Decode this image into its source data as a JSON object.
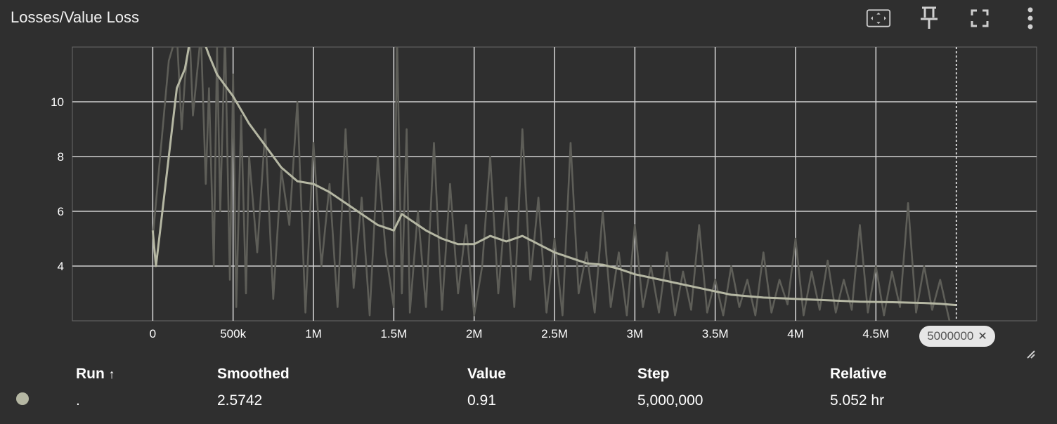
{
  "header": {
    "title": "Losses/Value Loss",
    "icons": [
      "fit-domain-icon",
      "pin-icon",
      "fullscreen-icon",
      "more-vert-icon"
    ]
  },
  "colors": {
    "background": "#2f2f2f",
    "grid": "#cfcfcf",
    "raw_line": "#5e5e58",
    "smoothed_line": "#b5b7a3",
    "tick_text": "#ffffff"
  },
  "chart_data": {
    "type": "line",
    "xlim": [
      -500000,
      5500000
    ],
    "ylim": [
      2,
      12
    ],
    "x_ticks": [
      0,
      500000,
      1000000,
      1500000,
      2000000,
      2500000,
      3000000,
      3500000,
      4000000,
      4500000
    ],
    "x_tick_labels": [
      "0",
      "500k",
      "1M",
      "1.5M",
      "2M",
      "2.5M",
      "3M",
      "3.5M",
      "4M",
      "4.5M"
    ],
    "y_ticks": [
      4,
      6,
      8,
      10
    ],
    "y_tick_labels": [
      "4",
      "6",
      "8",
      "10"
    ],
    "grid": true,
    "hover_step": 5000000,
    "hover_step_label": "5000000",
    "series": [
      {
        "role": "smoothed",
        "x": [
          0,
          20000,
          50000,
          100000,
          150000,
          200000,
          250000,
          300000,
          350000,
          400000,
          450000,
          500000,
          600000,
          700000,
          800000,
          900000,
          1000000,
          1100000,
          1200000,
          1300000,
          1400000,
          1500000,
          1550000,
          1600000,
          1700000,
          1800000,
          1900000,
          2000000,
          2100000,
          2200000,
          2300000,
          2400000,
          2500000,
          2600000,
          2700000,
          2800000,
          2900000,
          3000000,
          3200000,
          3400000,
          3600000,
          3800000,
          4000000,
          4200000,
          4400000,
          4600000,
          4800000,
          4900000,
          5000000
        ],
        "y": [
          5.3,
          4.0,
          5.5,
          8.0,
          10.5,
          11.2,
          12.8,
          12.5,
          11.7,
          11.0,
          10.6,
          10.2,
          9.2,
          8.4,
          7.6,
          7.1,
          7.0,
          6.7,
          6.3,
          5.9,
          5.5,
          5.3,
          5.9,
          5.7,
          5.3,
          5.0,
          4.8,
          4.8,
          5.1,
          4.9,
          5.1,
          4.8,
          4.5,
          4.3,
          4.1,
          4.05,
          3.9,
          3.7,
          3.45,
          3.2,
          2.95,
          2.85,
          2.8,
          2.75,
          2.7,
          2.68,
          2.65,
          2.62,
          2.5742
        ]
      },
      {
        "role": "raw",
        "x": [
          0,
          100000,
          150000,
          180000,
          200000,
          230000,
          250000,
          300000,
          330000,
          350000,
          380000,
          400000,
          420000,
          450000,
          480000,
          500000,
          520000,
          550000,
          580000,
          600000,
          650000,
          700000,
          750000,
          800000,
          850000,
          900000,
          950000,
          1000000,
          1050000,
          1100000,
          1150000,
          1200000,
          1250000,
          1300000,
          1350000,
          1400000,
          1450000,
          1500000,
          1520000,
          1550000,
          1580000,
          1600000,
          1650000,
          1700000,
          1750000,
          1800000,
          1850000,
          1900000,
          1950000,
          2000000,
          2050000,
          2100000,
          2150000,
          2200000,
          2250000,
          2300000,
          2350000,
          2400000,
          2450000,
          2500000,
          2550000,
          2600000,
          2650000,
          2700000,
          2750000,
          2800000,
          2850000,
          2900000,
          2950000,
          3000000,
          3050000,
          3100000,
          3150000,
          3200000,
          3250000,
          3300000,
          3350000,
          3400000,
          3450000,
          3500000,
          3550000,
          3600000,
          3650000,
          3700000,
          3750000,
          3800000,
          3850000,
          3900000,
          3950000,
          4000000,
          4050000,
          4100000,
          4150000,
          4200000,
          4250000,
          4300000,
          4350000,
          4400000,
          4450000,
          4500000,
          4550000,
          4600000,
          4650000,
          4700000,
          4750000,
          4800000,
          4850000,
          4900000,
          4950000,
          5000000
        ],
        "y": [
          5.0,
          11.5,
          12.5,
          9.0,
          10.8,
          12.5,
          9.5,
          12.5,
          7.0,
          10.5,
          4.0,
          12.0,
          6.0,
          12.5,
          3.5,
          11.0,
          2.5,
          9.5,
          3.0,
          8.0,
          4.5,
          9.0,
          2.8,
          7.5,
          5.5,
          10.0,
          2.3,
          8.5,
          4.0,
          7.0,
          2.5,
          9.0,
          3.2,
          6.5,
          2.2,
          8.0,
          4.5,
          2.5,
          12.5,
          3.0,
          9.0,
          2.3,
          6.0,
          2.5,
          8.5,
          2.4,
          7.0,
          3.0,
          5.5,
          2.2,
          4.0,
          8.0,
          3.0,
          6.5,
          2.5,
          9.0,
          3.5,
          6.5,
          2.3,
          5.0,
          2.2,
          8.5,
          3.0,
          4.5,
          2.3,
          6.0,
          2.5,
          4.5,
          2.2,
          5.5,
          2.5,
          4.0,
          2.3,
          4.5,
          2.2,
          3.8,
          2.4,
          5.5,
          2.3,
          3.5,
          2.2,
          4.0,
          2.5,
          3.5,
          2.2,
          4.5,
          2.3,
          3.5,
          2.6,
          5.0,
          2.2,
          3.8,
          2.4,
          4.2,
          2.3,
          3.5,
          2.4,
          5.5,
          2.3,
          4.0,
          2.2,
          3.8,
          2.5,
          6.3,
          2.3,
          4.0,
          2.4,
          3.5,
          2.2,
          0.91
        ]
      }
    ]
  },
  "table": {
    "headers": [
      "Run",
      "Smoothed",
      "Value",
      "Step",
      "Relative"
    ],
    "sort_indicator": "↑",
    "rows": [
      {
        "run": ".",
        "smoothed": "2.5742",
        "value": "0.91",
        "step": "5,000,000",
        "relative": "5.052 hr"
      }
    ]
  }
}
